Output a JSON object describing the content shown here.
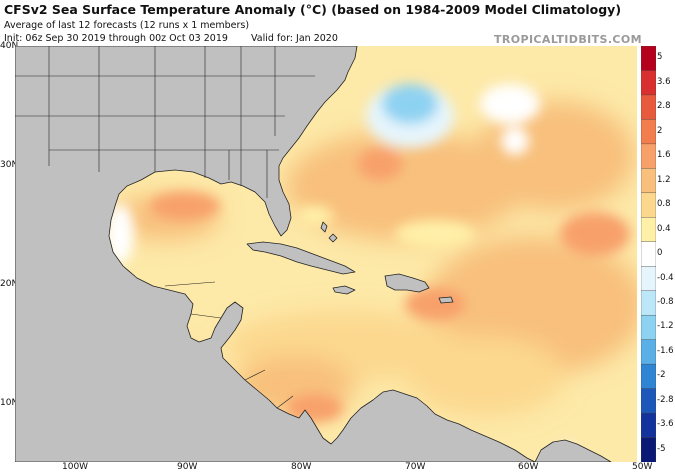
{
  "header": {
    "title": "CFSv2 Sea Surface Temperature Anomaly (°C) (based on 1984-2009 Model Climatology)",
    "subtitle": "Average of last 12 forecasts (12 runs x 1 members)",
    "init": "Init: 06z Sep 30 2019 through 00z Oct 03 2019",
    "valid": "Valid for: Jan 2020",
    "credit": "TROPICALTIDBITS.COM"
  },
  "map": {
    "lat_labels": [
      "40N",
      "30N",
      "20N",
      "10N"
    ],
    "lon_labels": [
      "100W",
      "90W",
      "80W",
      "70W",
      "60W",
      "50W"
    ],
    "land_color": "#c0c0c0",
    "ocean_base_color": "#fde9a8"
  },
  "colorbar": {
    "labels": [
      "5",
      "3.6",
      "2.8",
      "2",
      "1.6",
      "1.2",
      "0.8",
      "0.4",
      "0",
      "-0.4",
      "-0.8",
      "-1.2",
      "-1.6",
      "-2",
      "-2.8",
      "-3.6",
      "-5"
    ],
    "colors": [
      "#b4001c",
      "#d7302e",
      "#e85a3c",
      "#f27e4e",
      "#f8a06a",
      "#f8c07c",
      "#fcd88e",
      "#fff0a8",
      "#ffffff",
      "#e6f5fc",
      "#bce7f8",
      "#8ed2f2",
      "#5ab0e6",
      "#2f84d4",
      "#1c57ba",
      "#12329c",
      "#0a1a74"
    ]
  }
}
